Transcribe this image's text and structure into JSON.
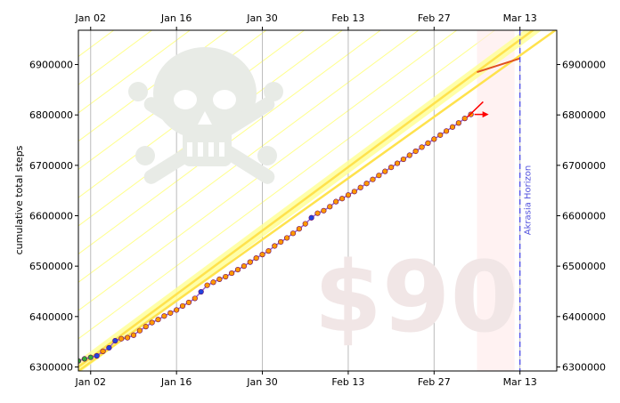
{
  "chart_data": {
    "type": "scatter",
    "title": "",
    "xlabel": "",
    "ylabel": "cumulative total steps",
    "x_tick_labels": [
      "Jan 02",
      "Jan 16",
      "Jan 30",
      "Feb 13",
      "Feb 27",
      "Mar 13"
    ],
    "y_tick_labels": [
      "6300000",
      "6400000",
      "6500000",
      "6600000",
      "6700000",
      "6800000",
      "6900000"
    ],
    "xlim": [
      "Dec 31",
      "Mar 19"
    ],
    "ylim": [
      6292000,
      6968000
    ],
    "grid": "vertical",
    "watermark": "$90",
    "horizon_label": "Akrasia Horizon",
    "horizon_date": "Mar 13",
    "bright_red_line": {
      "x": [
        "Dec 31",
        "Mar 19"
      ],
      "y": [
        6292000,
        6970000
      ]
    },
    "yellow_road": {
      "x": [
        "Dec 31",
        "Mar 14"
      ],
      "y": [
        6300000,
        6958000
      ]
    },
    "road_projection": {
      "x": [
        "Mar 06",
        "Mar 13"
      ],
      "y": [
        6885000,
        6912000
      ]
    },
    "datapoints": [
      {
        "x": "Dec 31",
        "y": 6312000
      },
      {
        "x": "Jan 01",
        "y": 6316000
      },
      {
        "x": "Jan 02",
        "y": 6319000
      },
      {
        "x": "Jan 03",
        "y": 6322000
      },
      {
        "x": "Jan 04",
        "y": 6331000
      },
      {
        "x": "Jan 05",
        "y": 6338000
      },
      {
        "x": "Jan 06",
        "y": 6352000
      },
      {
        "x": "Jan 07",
        "y": 6356000
      },
      {
        "x": "Jan 08",
        "y": 6358000
      },
      {
        "x": "Jan 09",
        "y": 6363000
      },
      {
        "x": "Jan 10",
        "y": 6372000
      },
      {
        "x": "Jan 11",
        "y": 6380000
      },
      {
        "x": "Jan 12",
        "y": 6388000
      },
      {
        "x": "Jan 13",
        "y": 6394000
      },
      {
        "x": "Jan 14",
        "y": 6401000
      },
      {
        "x": "Jan 15",
        "y": 6407000
      },
      {
        "x": "Jan 16",
        "y": 6413000
      },
      {
        "x": "Jan 17",
        "y": 6421000
      },
      {
        "x": "Jan 18",
        "y": 6428000
      },
      {
        "x": "Jan 19",
        "y": 6436000
      },
      {
        "x": "Jan 20",
        "y": 6449000
      },
      {
        "x": "Jan 21",
        "y": 6462000
      },
      {
        "x": "Jan 22",
        "y": 6468000
      },
      {
        "x": "Jan 23",
        "y": 6474000
      },
      {
        "x": "Jan 24",
        "y": 6479000
      },
      {
        "x": "Jan 25",
        "y": 6486000
      },
      {
        "x": "Jan 26",
        "y": 6493000
      },
      {
        "x": "Jan 27",
        "y": 6500000
      },
      {
        "x": "Jan 28",
        "y": 6508000
      },
      {
        "x": "Jan 29",
        "y": 6516000
      },
      {
        "x": "Jan 30",
        "y": 6523000
      },
      {
        "x": "Jan 31",
        "y": 6530000
      },
      {
        "x": "Feb 01",
        "y": 6540000
      },
      {
        "x": "Feb 02",
        "y": 6548000
      },
      {
        "x": "Feb 03",
        "y": 6556000
      },
      {
        "x": "Feb 04",
        "y": 6565000
      },
      {
        "x": "Feb 05",
        "y": 6574000
      },
      {
        "x": "Feb 06",
        "y": 6584000
      },
      {
        "x": "Feb 07",
        "y": 6596000
      },
      {
        "x": "Feb 08",
        "y": 6605000
      },
      {
        "x": "Feb 09",
        "y": 6610000
      },
      {
        "x": "Feb 10",
        "y": 6618000
      },
      {
        "x": "Feb 11",
        "y": 6628000
      },
      {
        "x": "Feb 12",
        "y": 6634000
      },
      {
        "x": "Feb 13",
        "y": 6641000
      },
      {
        "x": "Feb 14",
        "y": 6648000
      },
      {
        "x": "Feb 15",
        "y": 6656000
      },
      {
        "x": "Feb 16",
        "y": 6664000
      },
      {
        "x": "Feb 17",
        "y": 6672000
      },
      {
        "x": "Feb 18",
        "y": 6680000
      },
      {
        "x": "Feb 19",
        "y": 6688000
      },
      {
        "x": "Feb 20",
        "y": 6696000
      },
      {
        "x": "Feb 21",
        "y": 6704000
      },
      {
        "x": "Feb 22",
        "y": 6712000
      },
      {
        "x": "Feb 23",
        "y": 6720000
      },
      {
        "x": "Feb 24",
        "y": 6728000
      },
      {
        "x": "Feb 25",
        "y": 6736000
      },
      {
        "x": "Feb 26",
        "y": 6744000
      },
      {
        "x": "Feb 27",
        "y": 6752000
      },
      {
        "x": "Feb 28",
        "y": 6760000
      },
      {
        "x": "Mar 01",
        "y": 6768000
      },
      {
        "x": "Mar 02",
        "y": 6776000
      },
      {
        "x": "Mar 03",
        "y": 6784000
      },
      {
        "x": "Mar 04",
        "y": 6793000
      },
      {
        "x": "Mar 05",
        "y": 6801000
      }
    ]
  },
  "colors": {
    "grid": "#bbbbbb",
    "road": "#ffe24d",
    "road_fill": "#ffff99",
    "guideline": "#ffff66",
    "red_line": "#ff0000",
    "projection": "#e05020",
    "horizon": "#4444ee",
    "watermark": "#f1e6e6",
    "danger_zone": "#ffe9e9",
    "point_orange": "#ff9900",
    "point_blue": "#2244dd",
    "point_green": "#33aa33",
    "point_edge": "#660066",
    "skull": "#e8ebe6"
  }
}
